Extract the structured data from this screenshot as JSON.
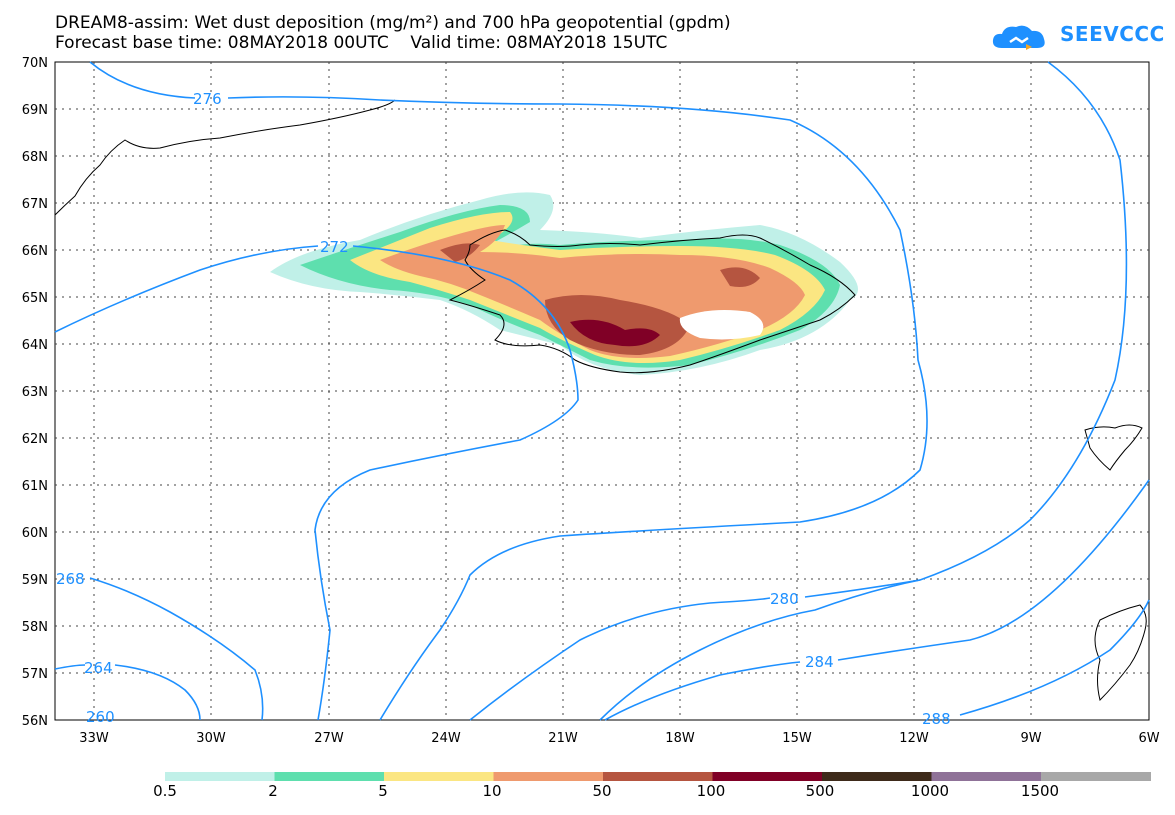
{
  "title_line1": "DREAM8-assim: Wet dust deposition (mg/m²) and 700 hPa geopotential (gpdm)",
  "title_line2": "Forecast base time: 08MAY2018 00UTC    Valid time: 08MAY2018 15UTC",
  "logo_text": "SEEVCCC",
  "lat_labels": [
    "70N",
    "69N",
    "68N",
    "67N",
    "66N",
    "65N",
    "64N",
    "63N",
    "62N",
    "61N",
    "60N",
    "59N",
    "58N",
    "57N",
    "56N"
  ],
  "lon_labels": [
    "33W",
    "30W",
    "27W",
    "24W",
    "21W",
    "18W",
    "15W",
    "12W",
    "9W",
    "6W"
  ],
  "contour_labels": [
    "276",
    "272",
    "268",
    "264",
    "260",
    "280",
    "284",
    "288"
  ],
  "legend": {
    "labels": [
      "0.5",
      "2",
      "5",
      "10",
      "50",
      "100",
      "500",
      "1000",
      "1500"
    ],
    "colors": [
      "#c0f0e8",
      "#5edfae",
      "#fbe682",
      "#ef9a6e",
      "#b55540",
      "#800026",
      "#3e2a1a",
      "#8f7298",
      "#a8a8a8"
    ]
  },
  "colors": {
    "contour": "#1e90ff",
    "coast": "#000000",
    "grid": "#444444"
  }
}
